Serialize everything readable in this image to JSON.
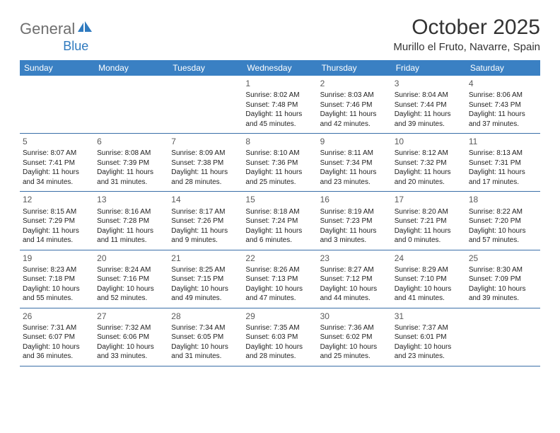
{
  "logo": {
    "text1": "General",
    "text2": "Blue"
  },
  "title": "October 2025",
  "location": "Murillo el Fruto, Navarre, Spain",
  "colors": {
    "header_bg": "#3a80c3",
    "header_text": "#ffffff",
    "row_border": "#3a6fa8",
    "logo_gray": "#6f6f6f",
    "logo_blue": "#2f7abf",
    "text": "#222222",
    "daynum": "#5a5a5a",
    "background": "#ffffff"
  },
  "days_of_week": [
    "Sunday",
    "Monday",
    "Tuesday",
    "Wednesday",
    "Thursday",
    "Friday",
    "Saturday"
  ],
  "weeks": [
    [
      null,
      null,
      null,
      {
        "n": "1",
        "sr": "Sunrise: 8:02 AM",
        "ss": "Sunset: 7:48 PM",
        "d1": "Daylight: 11 hours",
        "d2": "and 45 minutes."
      },
      {
        "n": "2",
        "sr": "Sunrise: 8:03 AM",
        "ss": "Sunset: 7:46 PM",
        "d1": "Daylight: 11 hours",
        "d2": "and 42 minutes."
      },
      {
        "n": "3",
        "sr": "Sunrise: 8:04 AM",
        "ss": "Sunset: 7:44 PM",
        "d1": "Daylight: 11 hours",
        "d2": "and 39 minutes."
      },
      {
        "n": "4",
        "sr": "Sunrise: 8:06 AM",
        "ss": "Sunset: 7:43 PM",
        "d1": "Daylight: 11 hours",
        "d2": "and 37 minutes."
      }
    ],
    [
      {
        "n": "5",
        "sr": "Sunrise: 8:07 AM",
        "ss": "Sunset: 7:41 PM",
        "d1": "Daylight: 11 hours",
        "d2": "and 34 minutes."
      },
      {
        "n": "6",
        "sr": "Sunrise: 8:08 AM",
        "ss": "Sunset: 7:39 PM",
        "d1": "Daylight: 11 hours",
        "d2": "and 31 minutes."
      },
      {
        "n": "7",
        "sr": "Sunrise: 8:09 AM",
        "ss": "Sunset: 7:38 PM",
        "d1": "Daylight: 11 hours",
        "d2": "and 28 minutes."
      },
      {
        "n": "8",
        "sr": "Sunrise: 8:10 AM",
        "ss": "Sunset: 7:36 PM",
        "d1": "Daylight: 11 hours",
        "d2": "and 25 minutes."
      },
      {
        "n": "9",
        "sr": "Sunrise: 8:11 AM",
        "ss": "Sunset: 7:34 PM",
        "d1": "Daylight: 11 hours",
        "d2": "and 23 minutes."
      },
      {
        "n": "10",
        "sr": "Sunrise: 8:12 AM",
        "ss": "Sunset: 7:32 PM",
        "d1": "Daylight: 11 hours",
        "d2": "and 20 minutes."
      },
      {
        "n": "11",
        "sr": "Sunrise: 8:13 AM",
        "ss": "Sunset: 7:31 PM",
        "d1": "Daylight: 11 hours",
        "d2": "and 17 minutes."
      }
    ],
    [
      {
        "n": "12",
        "sr": "Sunrise: 8:15 AM",
        "ss": "Sunset: 7:29 PM",
        "d1": "Daylight: 11 hours",
        "d2": "and 14 minutes."
      },
      {
        "n": "13",
        "sr": "Sunrise: 8:16 AM",
        "ss": "Sunset: 7:28 PM",
        "d1": "Daylight: 11 hours",
        "d2": "and 11 minutes."
      },
      {
        "n": "14",
        "sr": "Sunrise: 8:17 AM",
        "ss": "Sunset: 7:26 PM",
        "d1": "Daylight: 11 hours",
        "d2": "and 9 minutes."
      },
      {
        "n": "15",
        "sr": "Sunrise: 8:18 AM",
        "ss": "Sunset: 7:24 PM",
        "d1": "Daylight: 11 hours",
        "d2": "and 6 minutes."
      },
      {
        "n": "16",
        "sr": "Sunrise: 8:19 AM",
        "ss": "Sunset: 7:23 PM",
        "d1": "Daylight: 11 hours",
        "d2": "and 3 minutes."
      },
      {
        "n": "17",
        "sr": "Sunrise: 8:20 AM",
        "ss": "Sunset: 7:21 PM",
        "d1": "Daylight: 11 hours",
        "d2": "and 0 minutes."
      },
      {
        "n": "18",
        "sr": "Sunrise: 8:22 AM",
        "ss": "Sunset: 7:20 PM",
        "d1": "Daylight: 10 hours",
        "d2": "and 57 minutes."
      }
    ],
    [
      {
        "n": "19",
        "sr": "Sunrise: 8:23 AM",
        "ss": "Sunset: 7:18 PM",
        "d1": "Daylight: 10 hours",
        "d2": "and 55 minutes."
      },
      {
        "n": "20",
        "sr": "Sunrise: 8:24 AM",
        "ss": "Sunset: 7:16 PM",
        "d1": "Daylight: 10 hours",
        "d2": "and 52 minutes."
      },
      {
        "n": "21",
        "sr": "Sunrise: 8:25 AM",
        "ss": "Sunset: 7:15 PM",
        "d1": "Daylight: 10 hours",
        "d2": "and 49 minutes."
      },
      {
        "n": "22",
        "sr": "Sunrise: 8:26 AM",
        "ss": "Sunset: 7:13 PM",
        "d1": "Daylight: 10 hours",
        "d2": "and 47 minutes."
      },
      {
        "n": "23",
        "sr": "Sunrise: 8:27 AM",
        "ss": "Sunset: 7:12 PM",
        "d1": "Daylight: 10 hours",
        "d2": "and 44 minutes."
      },
      {
        "n": "24",
        "sr": "Sunrise: 8:29 AM",
        "ss": "Sunset: 7:10 PM",
        "d1": "Daylight: 10 hours",
        "d2": "and 41 minutes."
      },
      {
        "n": "25",
        "sr": "Sunrise: 8:30 AM",
        "ss": "Sunset: 7:09 PM",
        "d1": "Daylight: 10 hours",
        "d2": "and 39 minutes."
      }
    ],
    [
      {
        "n": "26",
        "sr": "Sunrise: 7:31 AM",
        "ss": "Sunset: 6:07 PM",
        "d1": "Daylight: 10 hours",
        "d2": "and 36 minutes."
      },
      {
        "n": "27",
        "sr": "Sunrise: 7:32 AM",
        "ss": "Sunset: 6:06 PM",
        "d1": "Daylight: 10 hours",
        "d2": "and 33 minutes."
      },
      {
        "n": "28",
        "sr": "Sunrise: 7:34 AM",
        "ss": "Sunset: 6:05 PM",
        "d1": "Daylight: 10 hours",
        "d2": "and 31 minutes."
      },
      {
        "n": "29",
        "sr": "Sunrise: 7:35 AM",
        "ss": "Sunset: 6:03 PM",
        "d1": "Daylight: 10 hours",
        "d2": "and 28 minutes."
      },
      {
        "n": "30",
        "sr": "Sunrise: 7:36 AM",
        "ss": "Sunset: 6:02 PM",
        "d1": "Daylight: 10 hours",
        "d2": "and 25 minutes."
      },
      {
        "n": "31",
        "sr": "Sunrise: 7:37 AM",
        "ss": "Sunset: 6:01 PM",
        "d1": "Daylight: 10 hours",
        "d2": "and 23 minutes."
      },
      null
    ]
  ]
}
